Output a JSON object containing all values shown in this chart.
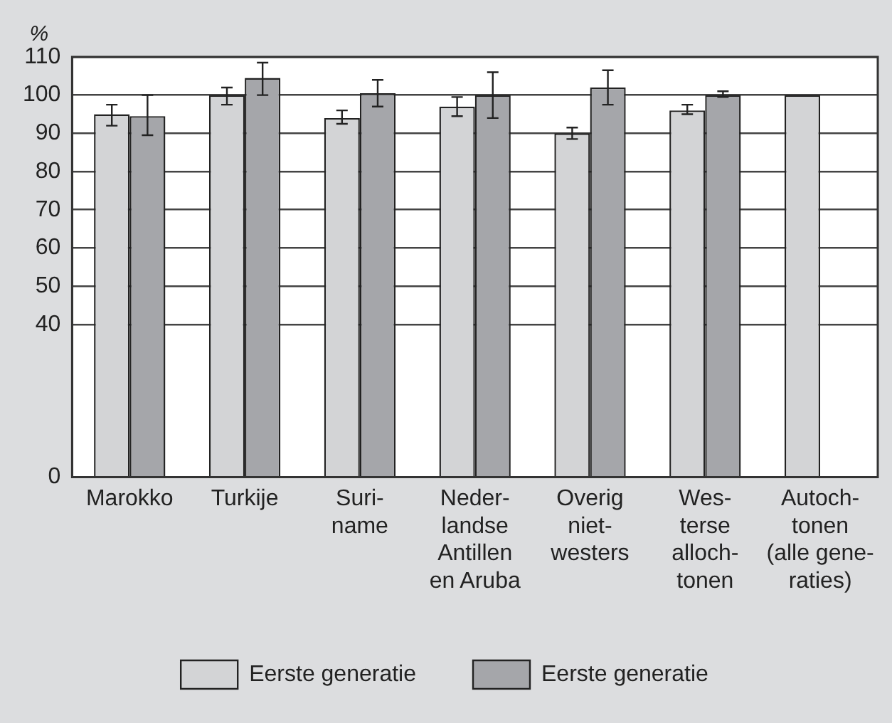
{
  "chart_data": {
    "type": "bar",
    "ylabel": "%",
    "categories": [
      "Marokko",
      "Turkije",
      "Suri-\nname",
      "Neder-\nlandse\nAntillen\nen Aruba",
      "Overig\nniet-\nwesters",
      "Wes-\nterse\nalloch-\ntonen",
      "Autoch-\ntonen\n(alle gene-\nraties)"
    ],
    "series": [
      {
        "name": "Eerste generatie",
        "color": "#d3d4d6",
        "values": [
          95,
          100,
          94,
          97,
          90,
          96,
          100
        ],
        "errors": [
          [
            92,
            97.5
          ],
          [
            97.5,
            102
          ],
          [
            92.5,
            96
          ],
          [
            94.5,
            99.5
          ],
          [
            88.5,
            91.5
          ],
          [
            95,
            97.5
          ],
          null
        ]
      },
      {
        "name": "Eerste generatie",
        "color": "#a5a6aa",
        "values": [
          94.5,
          104.5,
          100.5,
          100,
          102,
          100,
          null
        ],
        "errors": [
          [
            89.5,
            100
          ],
          [
            100,
            108.5
          ],
          [
            97,
            104
          ],
          [
            94,
            106
          ],
          [
            97.5,
            106.5
          ],
          [
            99.5,
            101
          ],
          null
        ]
      }
    ],
    "ylim": [
      0,
      110
    ],
    "yticks": [
      0,
      40,
      50,
      60,
      70,
      80,
      90,
      100,
      110
    ],
    "grid": "y",
    "legend": "bottom"
  }
}
